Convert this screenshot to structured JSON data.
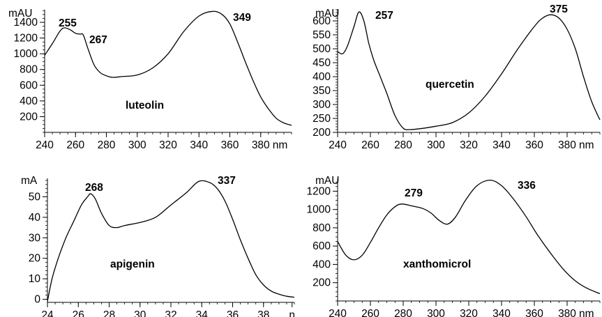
{
  "chart_data": [
    {
      "type": "line",
      "compound": "luteolin",
      "y_unit": "mAU",
      "x_unit": "nm",
      "xlim": [
        240,
        400
      ],
      "ylim": [
        0,
        1560
      ],
      "x_ticks": [
        "240",
        "260",
        "280",
        "300",
        "320",
        "340",
        "360",
        "380"
      ],
      "y_ticks": [
        "200",
        "400",
        "600",
        "800",
        "1000",
        "1200",
        "1400"
      ],
      "peaks": [
        {
          "label": "255",
          "x": 253,
          "y": 1330
        },
        {
          "label": "267",
          "x": 265,
          "y": 1260
        },
        {
          "label": "349",
          "x": 349,
          "y": 1540
        }
      ],
      "series": [
        {
          "x": [
            240,
            245,
            250,
            253,
            257,
            260,
            263,
            265,
            268,
            272,
            276,
            280,
            284,
            290,
            300,
            310,
            320,
            330,
            340,
            349,
            355,
            360,
            365,
            370,
            375,
            380,
            385,
            390,
            395,
            400
          ],
          "y": [
            980,
            1130,
            1290,
            1330,
            1300,
            1260,
            1250,
            1240,
            1070,
            860,
            760,
            720,
            700,
            710,
            730,
            820,
            1000,
            1280,
            1480,
            1540,
            1500,
            1380,
            1150,
            900,
            660,
            450,
            300,
            180,
            120,
            90
          ]
        }
      ]
    },
    {
      "type": "line",
      "compound": "quercetin",
      "y_unit": "mAU",
      "x_unit": "nm",
      "xlim": [
        240,
        400
      ],
      "ylim": [
        200,
        640
      ],
      "x_ticks": [
        "240",
        "260",
        "280",
        "300",
        "320",
        "340",
        "360",
        "380"
      ],
      "y_ticks": [
        "200",
        "250",
        "300",
        "350",
        "400",
        "450",
        "500",
        "550",
        "600"
      ],
      "peaks": [
        {
          "label": "257",
          "x": 253,
          "y": 630
        },
        {
          "label": "375",
          "x": 370,
          "y": 622
        }
      ],
      "series": [
        {
          "x": [
            240,
            243,
            246,
            250,
            253,
            256,
            259,
            262,
            266,
            270,
            275,
            280,
            284,
            290,
            300,
            310,
            320,
            330,
            340,
            350,
            360,
            365,
            370,
            375,
            380,
            385,
            390,
            395,
            400
          ],
          "y": [
            490,
            482,
            510,
            580,
            632,
            600,
            520,
            460,
            400,
            340,
            260,
            215,
            210,
            213,
            222,
            235,
            270,
            330,
            410,
            500,
            580,
            610,
            622,
            610,
            570,
            500,
            400,
            310,
            245
          ]
        }
      ]
    },
    {
      "type": "line",
      "compound": "apigenin",
      "y_unit": "mA",
      "x_unit": "n",
      "xlim": [
        24,
        40
      ],
      "ylim": [
        0,
        59
      ],
      "x_ticks": [
        "24",
        "26",
        "28",
        "30",
        "32",
        "34",
        "36",
        "38",
        "n"
      ],
      "y_ticks": [
        "0",
        "10",
        "20",
        "30",
        "40",
        "50"
      ],
      "peaks": [
        {
          "label": "268",
          "x": 26.8,
          "y": 51.5
        },
        {
          "label": "337",
          "x": 33.8,
          "y": 57.5
        }
      ],
      "series": [
        {
          "x": [
            24,
            24.3,
            24.7,
            25.2,
            25.7,
            26.2,
            26.6,
            26.8,
            27.1,
            27.5,
            28,
            28.5,
            29,
            30,
            31,
            32,
            33,
            33.8,
            34.5,
            35,
            35.5,
            36,
            36.5,
            37,
            37.5,
            38,
            38.5,
            39,
            39.5,
            40
          ],
          "y": [
            -1,
            10,
            20,
            30,
            38,
            46,
            50,
            51.5,
            49,
            42,
            36,
            35,
            36,
            37.5,
            40,
            46,
            52,
            57.5,
            57,
            54,
            48,
            39,
            29,
            20,
            12,
            7,
            4,
            2.5,
            1.5,
            1
          ]
        }
      ]
    },
    {
      "type": "line",
      "compound": "xanthomicrol",
      "y_unit": "mAU",
      "x_unit": "nm",
      "xlim": [
        240,
        400
      ],
      "ylim": [
        0,
        1340
      ],
      "x_ticks": [
        "240",
        "260",
        "280",
        "300",
        "320",
        "340",
        "360",
        "380"
      ],
      "y_ticks": [
        "200",
        "400",
        "600",
        "800",
        "1000",
        "1200"
      ],
      "peaks": [
        {
          "label": "279",
          "x": 279,
          "y": 1060
        },
        {
          "label": "336",
          "x": 333,
          "y": 1320
        }
      ],
      "series": [
        {
          "x": [
            240,
            245,
            250,
            255,
            260,
            265,
            270,
            275,
            279,
            285,
            292,
            297,
            302,
            307,
            312,
            318,
            325,
            333,
            340,
            347,
            355,
            362,
            370,
            378,
            385,
            392,
            400
          ],
          "y": [
            650,
            500,
            450,
            500,
            640,
            800,
            940,
            1030,
            1060,
            1040,
            1010,
            960,
            880,
            840,
            920,
            1100,
            1260,
            1320,
            1260,
            1120,
            920,
            720,
            520,
            340,
            220,
            140,
            80
          ]
        }
      ]
    }
  ]
}
